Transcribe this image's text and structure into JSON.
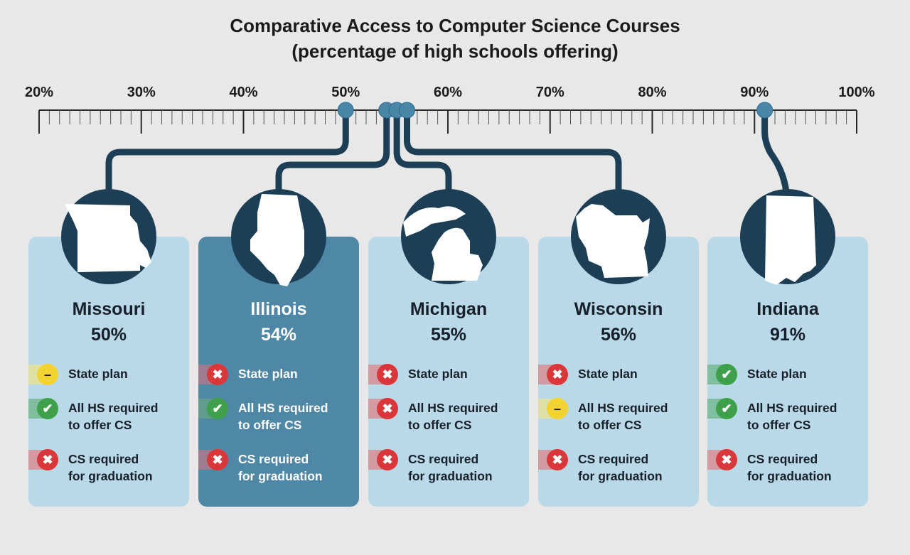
{
  "chart_data": {
    "type": "dot",
    "title": "Comparative Access to Computer Science Courses",
    "subtitle": "(percentage of high schools offering)",
    "xlim": [
      20,
      100
    ],
    "x_ticks": [
      "20%",
      "30%",
      "40%",
      "50%",
      "60%",
      "70%",
      "80%",
      "90%",
      "100%"
    ],
    "x_tick_values": [
      20,
      30,
      40,
      50,
      60,
      70,
      80,
      90,
      100
    ],
    "categories": [
      "Missouri",
      "Illinois",
      "Michigan",
      "Wisconsin",
      "Indiana"
    ],
    "values": [
      50,
      54,
      55,
      56,
      91
    ],
    "value_labels": [
      "50%",
      "54%",
      "55%",
      "56%",
      "91%"
    ],
    "highlighted": "Illinois",
    "criteria": [
      [
        "State plan",
        "All HS required\nto offer CS",
        "CS required\nfor graduation"
      ],
      [
        "State plan",
        "All HS required\nto offer CS",
        "CS required\nfor graduation"
      ],
      [
        "State plan",
        "All HS required\nto offer CS",
        "CS required\nfor graduation"
      ],
      [
        "State plan",
        "All HS required\nto offer CS",
        "CS required\nfor graduation"
      ],
      [
        "State plan",
        "All HS required\nto offer CS",
        "CS required\nfor graduation"
      ]
    ],
    "status": [
      [
        "partial",
        "yes",
        "no"
      ],
      [
        "no",
        "yes",
        "no"
      ],
      [
        "no",
        "no",
        "no"
      ],
      [
        "no",
        "partial",
        "no"
      ],
      [
        "yes",
        "yes",
        "no"
      ]
    ],
    "colors": {
      "axis": "#2a2a2a",
      "connector": "#1c3f55",
      "marker": "#4a86a8",
      "card": "#b9d8e8",
      "card_highlight": "#4f87a6",
      "yes": "#3ea04a",
      "no": "#d9373a",
      "partial": "#f2d331"
    }
  }
}
